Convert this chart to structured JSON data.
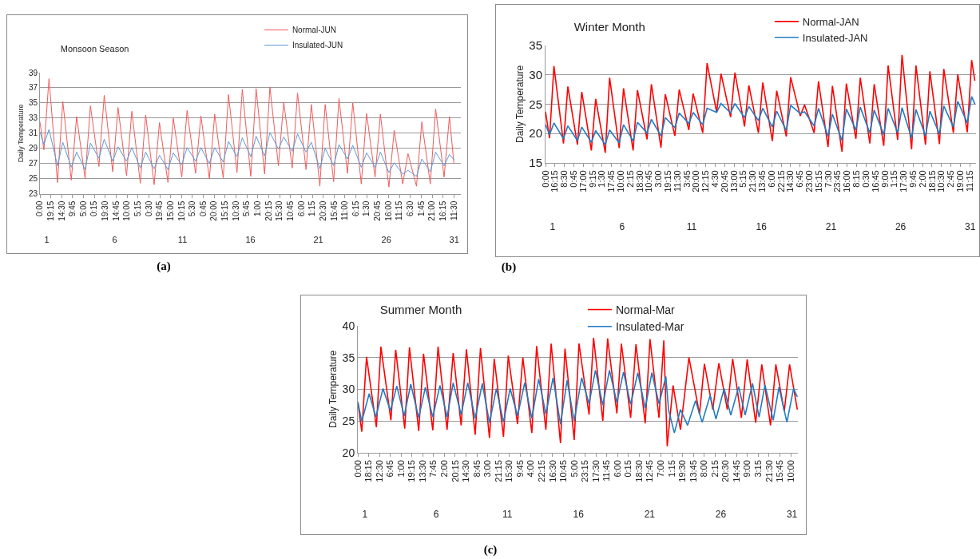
{
  "chart_data": [
    {
      "type": "line",
      "title": "Monsoon Season",
      "ylabel": "Daily Temperature",
      "annotations": [
        "(a)"
      ],
      "legend": "top",
      "grid": "y",
      "x": [
        "--01-01T00:00",
        "--01-01T07:00",
        "--01-01T16:00",
        "--01-02T07:00",
        "--01-02T16:24",
        "--01-03T07:24",
        "--01-03T16:48",
        "--01-04T07:48",
        "--01-04T17:12",
        "--01-05T08:12",
        "--01-05T17:36",
        "--01-06T08:36",
        "--01-06T18:00",
        "--01-07T09:00",
        "--01-07T18:24",
        "--01-08T09:24",
        "--01-08T18:48",
        "--01-09T09:48",
        "--01-09T19:12",
        "--01-10T10:12",
        "--01-10T19:36",
        "--01-11T10:36",
        "--01-11T20:00",
        "--01-12T11:00",
        "--01-12T20:24",
        "--01-13T11:24",
        "--01-13T20:48",
        "--01-14T11:48",
        "--01-14T21:12",
        "--01-15T12:12",
        "--01-15T21:36",
        "--01-16T12:36",
        "--01-16T22:00",
        "--01-17T13:00",
        "--01-17T22:24",
        "--01-18T13:24",
        "--01-18T22:48",
        "--01-19T13:48",
        "--01-19T23:12",
        "--01-20T14:12",
        "--01-20T23:36",
        "--01-21T14:36",
        "--01-22T00:00",
        "--01-22T15:00",
        "--01-23T00:24",
        "--01-23T15:24",
        "--01-24T00:48",
        "--01-24T15:48",
        "--01-25T01:12",
        "--01-25T16:12",
        "--01-26T01:36",
        "--01-26T16:36",
        "--01-27T02:00",
        "--01-27T17:00",
        "--01-28T02:24",
        "--01-28T17:24",
        "--01-29T02:48",
        "--01-29T17:48",
        "--01-30T03:12",
        "--01-30T18:12",
        "--01-31T03:36",
        "--01-31T11:30"
      ],
      "series": [
        {
          "name": "Normal-JUN",
          "color": "#f25a5a",
          "values": [
            32.5,
            28.8,
            38.2,
            24.5,
            35.2,
            24.8,
            33.2,
            25,
            34.6,
            26.6,
            36,
            25.9,
            34.4,
            25.4,
            33.9,
            24.4,
            33.4,
            24.2,
            32.4,
            24.5,
            33,
            25.2,
            34,
            25.7,
            33.3,
            25,
            33.5,
            25.1,
            36.1,
            25.8,
            36.8,
            25.3,
            36.9,
            25.6,
            37.1,
            26.7,
            35.1,
            26.4,
            36.3,
            26.2,
            34.8,
            24,
            34.8,
            24.6,
            35.6,
            25.7,
            35,
            24.3,
            33.6,
            25.2,
            33.5,
            23.9,
            31.4,
            24.3,
            28.3,
            24,
            32.5,
            24.3,
            34.2,
            25.2,
            33.2,
            27
          ]
        },
        {
          "name": "Insulated-JUN",
          "color": "#5b9bd5",
          "values": [
            31.2,
            29.5,
            31.5,
            26.7,
            29.8,
            26.5,
            28.5,
            26.2,
            29.7,
            27.7,
            30.2,
            27.3,
            29.2,
            27.3,
            29.1,
            26.4,
            28.5,
            26.3,
            28.1,
            26.2,
            28.4,
            26.8,
            29.1,
            27.3,
            29.1,
            27,
            29.1,
            27.2,
            29.9,
            27.9,
            30.4,
            27.9,
            30.6,
            28,
            31.1,
            28.9,
            30.5,
            28.6,
            30.9,
            28.5,
            29.8,
            26.3,
            29,
            26.7,
            29.5,
            27.6,
            29.4,
            26.5,
            28.4,
            26.5,
            28.5,
            25.8,
            27.1,
            25.6,
            26.1,
            25.3,
            27.6,
            25.9,
            28.5,
            26.7,
            28.2,
            27.5
          ]
        }
      ],
      "xlim": [
        "--01-01T00:00",
        "--01-31T23:45"
      ],
      "ylim": [
        23,
        39
      ],
      "yticks": [
        23,
        25,
        27,
        29,
        31,
        33,
        35,
        37,
        39
      ],
      "xticks": [
        {
          "value": "--01-01T00:00",
          "label": "0:00"
        },
        {
          "value": "--01-01T19:15",
          "label": "19:15"
        },
        {
          "value": "--01-02T14:30",
          "label": "14:30"
        },
        {
          "value": "--01-03T09:45",
          "label": "9:45"
        },
        {
          "value": "--01-04T05:00",
          "label": "5:00"
        },
        {
          "value": "--01-05T00:15",
          "label": "0:15"
        },
        {
          "value": "--01-05T19:30",
          "label": "19:30"
        },
        {
          "value": "--01-06T14:45",
          "label": "14:45"
        },
        {
          "value": "--01-07T10:00",
          "label": "10:00"
        },
        {
          "value": "--01-08T05:15",
          "label": "5:15"
        },
        {
          "value": "--01-09T00:30",
          "label": "0:30"
        },
        {
          "value": "--01-09T19:45",
          "label": "19:45"
        },
        {
          "value": "--01-10T15:00",
          "label": "15:00"
        },
        {
          "value": "--01-11T10:15",
          "label": "10:15"
        },
        {
          "value": "--01-12T05:30",
          "label": "5:30"
        },
        {
          "value": "--01-13T00:45",
          "label": "0:45"
        },
        {
          "value": "--01-13T20:00",
          "label": "20:00"
        },
        {
          "value": "--01-14T15:15",
          "label": "15:15"
        },
        {
          "value": "--01-15T10:30",
          "label": "10:30"
        },
        {
          "value": "--01-16T05:45",
          "label": "5:45"
        },
        {
          "value": "--01-17T01:00",
          "label": "1:00"
        },
        {
          "value": "--01-17T20:15",
          "label": "20:15"
        },
        {
          "value": "--01-18T15:30",
          "label": "15:30"
        },
        {
          "value": "--01-19T10:45",
          "label": "10:45"
        },
        {
          "value": "--01-20T06:00",
          "label": "6:00"
        },
        {
          "value": "--01-21T01:15",
          "label": "1:15"
        },
        {
          "value": "--01-21T20:30",
          "label": "20:30"
        },
        {
          "value": "--01-22T15:45",
          "label": "15:45"
        },
        {
          "value": "--01-23T11:00",
          "label": "11:00"
        },
        {
          "value": "--01-24T06:15",
          "label": "6:15"
        },
        {
          "value": "--01-25T01:30",
          "label": "1:30"
        },
        {
          "value": "--01-25T20:45",
          "label": "20:45"
        },
        {
          "value": "--01-26T16:00",
          "label": "16:00"
        },
        {
          "value": "--01-27T11:15",
          "label": "11:15"
        },
        {
          "value": "--01-28T06:30",
          "label": "6:30"
        },
        {
          "value": "--01-29T01:45",
          "label": "1:45"
        },
        {
          "value": "--01-29T21:00",
          "label": "21:00"
        },
        {
          "value": "--01-30T16:15",
          "label": "16:15"
        },
        {
          "value": "--01-31T11:30",
          "label": "11:30"
        }
      ],
      "x2lim": [
        "--01-01T00:00",
        "--01-31T23:45"
      ],
      "x2ticks": [
        {
          "value": "--01-01T12:00",
          "label": "1"
        },
        {
          "value": "--01-06T12:00",
          "label": "6"
        },
        {
          "value": "--01-11T12:00",
          "label": "11"
        },
        {
          "value": "--01-16T12:00",
          "label": "16"
        },
        {
          "value": "--01-21T12:00",
          "label": "21"
        },
        {
          "value": "--01-26T12:00",
          "label": "26"
        },
        {
          "value": "--01-31T12:00",
          "label": "31"
        }
      ]
    },
    {
      "type": "line",
      "title": "Winter Month",
      "ylabel": "Daily Temperature",
      "annotations": [
        "(b)"
      ],
      "legend": "top",
      "grid": "y",
      "x": [
        "--01-01T00:00",
        "--01-01T07:00",
        "--01-01T14:30",
        "--01-02T07:00",
        "--01-02T14:30",
        "--01-03T07:00",
        "--01-03T14:30",
        "--01-04T07:00",
        "--01-04T14:30",
        "--01-05T07:00",
        "--01-05T14:30",
        "--01-06T07:00",
        "--01-06T14:30",
        "--01-07T07:00",
        "--01-07T14:30",
        "--01-08T07:00",
        "--01-08T14:30",
        "--01-09T07:00",
        "--01-09T14:30",
        "--01-10T07:00",
        "--01-10T14:30",
        "--01-11T07:00",
        "--01-11T14:30",
        "--01-12T07:00",
        "--01-12T14:30",
        "--01-13T07:00",
        "--01-13T14:30",
        "--01-14T07:00",
        "--01-14T14:30",
        "--01-15T07:00",
        "--01-15T14:30",
        "--01-16T07:00",
        "--01-16T14:30",
        "--01-17T07:00",
        "--01-17T14:30",
        "--01-18T07:00",
        "--01-18T14:30",
        "--01-19T07:00",
        "--01-19T14:30",
        "--01-20T07:00",
        "--01-20T14:30",
        "--01-21T07:00",
        "--01-21T14:30",
        "--01-22T07:00",
        "--01-22T14:30",
        "--01-23T07:00",
        "--01-23T14:30",
        "--01-24T07:00",
        "--01-24T14:30",
        "--01-25T07:00",
        "--01-25T14:30",
        "--01-26T07:00",
        "--01-26T14:30",
        "--01-27T07:00",
        "--01-27T14:30",
        "--01-28T07:00",
        "--01-28T14:30",
        "--01-29T07:00",
        "--01-29T14:30",
        "--01-30T07:00",
        "--01-30T14:30",
        "--01-31T07:00",
        "--01-31T14:30",
        "--01-31T20:00"
      ],
      "series": [
        {
          "name": "Normal-JAN",
          "color": "#ff0000",
          "values": [
            23.7,
            19.2,
            31.5,
            18.3,
            28,
            18.1,
            27.1,
            17.1,
            25.9,
            16.7,
            29.5,
            17.5,
            27.7,
            17.1,
            27.4,
            19,
            28.4,
            17.6,
            26.7,
            19.6,
            27.5,
            20.6,
            26.8,
            20.1,
            32,
            23.6,
            30.2,
            22.8,
            30.4,
            21.2,
            28.2,
            20.1,
            28.7,
            18.7,
            27.3,
            19.5,
            29.6,
            23,
            24.9,
            20.1,
            28.9,
            17.7,
            28.1,
            16.9,
            28.5,
            19.1,
            29.5,
            18.3,
            28.4,
            17.9,
            31.6,
            18.9,
            33.4,
            17.3,
            31.6,
            18.1,
            30.6,
            18.2,
            31,
            20.1,
            30.1,
            20.2,
            32.5,
            29
          ]
        },
        {
          "name": "Insulated-JAN",
          "color": "#1f7cc4",
          "values": [
            21.5,
            19.8,
            21.8,
            19.1,
            21.3,
            18.8,
            21.1,
            18.5,
            20.5,
            18.1,
            20.6,
            18.4,
            21.5,
            18.7,
            21.9,
            20.1,
            22.4,
            19.6,
            22.7,
            21,
            23.5,
            21.7,
            23.6,
            21.5,
            24.3,
            23.6,
            25.1,
            23.5,
            25.1,
            22.7,
            24.6,
            22.2,
            24.3,
            21.1,
            23.8,
            20.5,
            24.8,
            23.4,
            23.7,
            21.3,
            24.3,
            19.5,
            23.3,
            18.8,
            24.2,
            20.6,
            24.5,
            20.1,
            24,
            19.8,
            24.3,
            20.1,
            24.4,
            19.2,
            24.1,
            19.6,
            23.8,
            19.9,
            24.7,
            21.1,
            25.5,
            21.8,
            26.3,
            25
          ]
        }
      ],
      "xlim": [
        "--01-01T00:00",
        "--01-31T22:00"
      ],
      "ylim": [
        15,
        35
      ],
      "yticks": [
        15,
        20,
        25,
        30,
        35
      ],
      "xticks": [
        {
          "value": "--01-01T00:00",
          "label": "0:00"
        },
        {
          "value": "--01-01T16:15",
          "label": "16:15"
        },
        {
          "value": "--01-02T08:30",
          "label": "8:30"
        },
        {
          "value": "--01-03T00:45",
          "label": "0:45"
        },
        {
          "value": "--01-03T17:00",
          "label": "17:00"
        },
        {
          "value": "--01-04T09:15",
          "label": "9:15"
        },
        {
          "value": "--01-05T01:30",
          "label": "1:30"
        },
        {
          "value": "--01-05T17:45",
          "label": "17:45"
        },
        {
          "value": "--01-06T10:00",
          "label": "10:00"
        },
        {
          "value": "--01-07T02:15",
          "label": "2:15"
        },
        {
          "value": "--01-07T18:30",
          "label": "18:30"
        },
        {
          "value": "--01-08T10:45",
          "label": "10:45"
        },
        {
          "value": "--01-09T03:00",
          "label": "3:00"
        },
        {
          "value": "--01-09T19:15",
          "label": "19:15"
        },
        {
          "value": "--01-10T11:30",
          "label": "11:30"
        },
        {
          "value": "--01-11T03:45",
          "label": "3:45"
        },
        {
          "value": "--01-11T20:00",
          "label": "20:00"
        },
        {
          "value": "--01-12T12:15",
          "label": "12:15"
        },
        {
          "value": "--01-13T04:30",
          "label": "4:30"
        },
        {
          "value": "--01-13T20:45",
          "label": "20:45"
        },
        {
          "value": "--01-14T13:00",
          "label": "13:00"
        },
        {
          "value": "--01-15T05:15",
          "label": "5:15"
        },
        {
          "value": "--01-15T21:30",
          "label": "21:30"
        },
        {
          "value": "--01-16T13:45",
          "label": "13:45"
        },
        {
          "value": "--01-17T06:00",
          "label": "6:00"
        },
        {
          "value": "--01-17T22:15",
          "label": "22:15"
        },
        {
          "value": "--01-18T14:30",
          "label": "14:30"
        },
        {
          "value": "--01-19T06:45",
          "label": "6:45"
        },
        {
          "value": "--01-19T23:00",
          "label": "23:00"
        },
        {
          "value": "--01-20T15:15",
          "label": "15:15"
        },
        {
          "value": "--01-21T07:30",
          "label": "7:30"
        },
        {
          "value": "--01-21T23:45",
          "label": "23:45"
        },
        {
          "value": "--01-22T16:00",
          "label": "16:00"
        },
        {
          "value": "--01-23T08:15",
          "label": "8:15"
        },
        {
          "value": "--01-24T00:30",
          "label": "0:30"
        },
        {
          "value": "--01-24T16:45",
          "label": "16:45"
        },
        {
          "value": "--01-25T09:00",
          "label": "9:00"
        },
        {
          "value": "--01-26T01:15",
          "label": "1:15"
        },
        {
          "value": "--01-26T17:30",
          "label": "17:30"
        },
        {
          "value": "--01-27T09:45",
          "label": "9:45"
        },
        {
          "value": "--01-28T02:00",
          "label": "2:00"
        },
        {
          "value": "--01-28T18:15",
          "label": "18:15"
        },
        {
          "value": "--01-29T10:30",
          "label": "10:30"
        },
        {
          "value": "--01-30T02:45",
          "label": "2:45"
        },
        {
          "value": "--01-30T19:00",
          "label": "19:00"
        },
        {
          "value": "--01-31T11:15",
          "label": "11:15"
        }
      ],
      "x2lim": [
        "--01-01T00:00",
        "--01-31T22:00"
      ],
      "x2ticks": [
        {
          "value": "--01-01T12:00",
          "label": "1"
        },
        {
          "value": "--01-06T12:00",
          "label": "6"
        },
        {
          "value": "--01-11T12:00",
          "label": "11"
        },
        {
          "value": "--01-16T12:00",
          "label": "16"
        },
        {
          "value": "--01-21T12:00",
          "label": "21"
        },
        {
          "value": "--01-26T12:00",
          "label": "26"
        },
        {
          "value": "--01-31T12:00",
          "label": "31"
        }
      ]
    },
    {
      "type": "line",
      "title": "Summer Month",
      "ylabel": "Daily Temperature",
      "annotations": [
        "(c)"
      ],
      "legend": "top",
      "grid": "y",
      "series": [
        {
          "name": "Normal-Mar",
          "color": "#ff0000",
          "x": [
            "--03-01T00:00",
            "--03-01T06:42",
            "--03-01T14:42",
            "--03-02T07:18",
            "--03-02T14:54",
            "--03-03T07:48",
            "--03-03T15:54",
            "--03-04T07:06",
            "--03-04T15:06",
            "--03-05T06:42",
            "--03-05T14:48",
            "--03-06T06:24",
            "--03-06T15:18",
            "--03-07T06:30",
            "--03-07T16:48",
            "--03-08T06:12",
            "--03-08T15:06",
            "--03-09T05:54",
            "--03-09T14:48",
            "--03-10T06:00",
            "--03-10T14:00",
            "--03-11T05:36",
            "--03-11T13:42",
            "--03-12T05:18",
            "--03-12T14:12",
            "--03-13T05:24",
            "--03-13T13:30",
            "--03-14T05:06",
            "--03-14T14:00",
            "--03-15T05:42",
            "--03-15T13:18",
            "--03-16T04:54",
            "--03-16T12:54",
            "--03-17T05:54",
            "--03-17T13:30",
            "--03-18T05:06",
            "--03-18T13:12",
            "--03-19T04:48",
            "--03-19T12:24",
            "--03-20T04:00",
            "--03-20T13:00",
            "--03-21T04:36",
            "--03-21T12:36",
            "--03-22T03:48",
            "--03-22T11:54",
            "--03-22T17:42",
            "--03-23T03:30",
            "--03-23T16:00",
            "--03-24T06:18",
            "--03-25T00:06",
            "--03-25T08:24",
            "--03-25T22:30",
            "--03-26T08:42",
            "--03-26T23:00",
            "--03-27T08:00",
            "--03-27T22:42",
            "--03-28T08:30",
            "--03-28T22:48",
            "--03-29T09:06",
            "--03-29T23:48",
            "--03-30T08:48",
            "--03-30T23:00",
            "--03-31T08:00",
            "--03-31T21:00"
          ],
          "values": [
            28,
            23.3,
            35.1,
            24,
            36.7,
            25.1,
            36.2,
            23.8,
            36.6,
            23.4,
            35.6,
            23.5,
            36.7,
            23.6,
            35.7,
            24.3,
            36.3,
            22.8,
            36.5,
            22.3,
            34.8,
            22.5,
            35.3,
            24.5,
            35,
            23.1,
            36.8,
            23.6,
            37.2,
            21.5,
            36.4,
            22,
            37.2,
            26,
            38.1,
            25,
            38,
            26.2,
            37.2,
            25.5,
            37.1,
            24.6,
            37.9,
            25.5,
            37.7,
            21,
            30.6,
            23.6,
            35,
            26.1,
            34,
            26.8,
            34.1,
            26.8,
            34.8,
            25.5,
            34.7,
            24.7,
            33.9,
            24.3,
            33.9,
            26.5,
            33.9,
            26.8
          ]
        },
        {
          "name": "Insulated-Mar",
          "color": "#1f7cc4",
          "x": [
            "--03-01T00:00",
            "--03-01T06:42",
            "--03-01T19:12",
            "--03-02T06:24",
            "--03-02T18:24",
            "--03-03T06:54",
            "--03-03T17:42",
            "--03-04T06:12",
            "--03-04T17:18",
            "--03-05T06:42",
            "--03-05T17:54",
            "--03-06T06:24",
            "--03-06T18:30",
            "--03-07T06:30",
            "--03-07T16:48",
            "--03-08T06:12",
            "--03-08T17:24",
            "--03-09T05:54",
            "--03-09T17:54",
            "--03-10T06:00",
            "--03-10T17:36",
            "--03-11T05:36",
            "--03-11T16:48",
            "--03-12T05:18",
            "--03-12T17:24",
            "--03-13T05:24",
            "--03-13T17:00",
            "--03-14T05:06",
            "--03-14T17:12",
            "--03-15T05:42",
            "--03-15T16:48",
            "--03-16T04:54",
            "--03-16T17:24",
            "--03-17T05:54",
            "--03-17T16:36",
            "--03-18T05:06",
            "--03-18T16:18",
            "--03-19T04:48",
            "--03-19T16:00",
            "--03-20T04:00",
            "--03-20T16:06",
            "--03-21T04:36",
            "--03-21T15:48",
            "--03-22T03:48",
            "--03-22T15:24",
            "--03-22T20:00",
            "--03-23T05:42",
            "--03-23T16:00",
            "--03-24T04:00",
            "--03-24T17:24",
            "--03-25T04:36",
            "--03-25T18:00",
            "--03-26T03:48",
            "--03-26T17:42",
            "--03-27T04:48",
            "--03-27T18:12",
            "--03-28T05:00",
            "--03-28T17:30",
            "--03-29T04:36",
            "--03-29T14:30",
            "--03-30T04:18",
            "--03-30T14:06",
            "--03-31T03:30",
            "--03-31T14:42",
            "--03-31T21:00"
          ],
          "values": [
            28,
            24.9,
            29.3,
            25.6,
            30.1,
            26.6,
            30.5,
            25.8,
            30.8,
            25.5,
            30.3,
            25.6,
            30.6,
            25.6,
            31,
            26,
            31,
            25.4,
            30.9,
            24.7,
            30.1,
            24.8,
            30.1,
            25.8,
            31,
            25.4,
            31.6,
            26.1,
            31.8,
            24.5,
            31.4,
            25,
            31.8,
            27.7,
            33,
            27.5,
            33,
            27.9,
            32.7,
            27.6,
            32.6,
            27,
            32.6,
            27.7,
            32,
            26.7,
            23.1,
            26.8,
            24.3,
            28.2,
            24.8,
            29,
            25.3,
            30.1,
            25.9,
            30.4,
            25.9,
            30.9,
            25.6,
            30.7,
            25.1,
            30.3,
            24.8,
            30.1,
            28.8
          ]
        }
      ],
      "xlim": [
        "--03-01T00:00",
        "--03-31T22:00"
      ],
      "ylim": [
        20,
        40
      ],
      "yticks": [
        20,
        25,
        30,
        35,
        40
      ],
      "xticks": [
        {
          "value": "--03-01T00:00",
          "label": "0:00"
        },
        {
          "value": "--03-01T18:15",
          "label": "18:15"
        },
        {
          "value": "--03-02T12:30",
          "label": "12:30"
        },
        {
          "value": "--03-03T06:45",
          "label": "6:45"
        },
        {
          "value": "--03-04T01:00",
          "label": "1:00"
        },
        {
          "value": "--03-04T19:15",
          "label": "19:15"
        },
        {
          "value": "--03-05T13:30",
          "label": "13:30"
        },
        {
          "value": "--03-06T07:45",
          "label": "7:45"
        },
        {
          "value": "--03-07T02:00",
          "label": "2:00"
        },
        {
          "value": "--03-07T20:15",
          "label": "20:15"
        },
        {
          "value": "--03-08T14:30",
          "label": "14:30"
        },
        {
          "value": "--03-09T08:45",
          "label": "8:45"
        },
        {
          "value": "--03-10T03:00",
          "label": "3:00"
        },
        {
          "value": "--03-10T21:15",
          "label": "21:15"
        },
        {
          "value": "--03-11T15:30",
          "label": "15:30"
        },
        {
          "value": "--03-12T09:45",
          "label": "9:45"
        },
        {
          "value": "--03-13T04:00",
          "label": "4:00"
        },
        {
          "value": "--03-13T22:15",
          "label": "22:15"
        },
        {
          "value": "--03-14T16:30",
          "label": "16:30"
        },
        {
          "value": "--03-15T10:45",
          "label": "10:45"
        },
        {
          "value": "--03-16T05:00",
          "label": "5:00"
        },
        {
          "value": "--03-16T23:15",
          "label": "23:15"
        },
        {
          "value": "--03-17T17:30",
          "label": "17:30"
        },
        {
          "value": "--03-18T11:45",
          "label": "11:45"
        },
        {
          "value": "--03-19T06:00",
          "label": "6:00"
        },
        {
          "value": "--03-20T00:15",
          "label": "0:15"
        },
        {
          "value": "--03-20T18:30",
          "label": "18:30"
        },
        {
          "value": "--03-21T12:45",
          "label": "12:45"
        },
        {
          "value": "--03-22T07:00",
          "label": "7:00"
        },
        {
          "value": "--03-23T01:15",
          "label": "1:15"
        },
        {
          "value": "--03-23T19:30",
          "label": "19:30"
        },
        {
          "value": "--03-24T13:45",
          "label": "13:45"
        },
        {
          "value": "--03-25T08:00",
          "label": "8:00"
        },
        {
          "value": "--03-26T02:15",
          "label": "2:15"
        },
        {
          "value": "--03-26T20:30",
          "label": "20:30"
        },
        {
          "value": "--03-27T14:45",
          "label": "14:45"
        },
        {
          "value": "--03-28T09:00",
          "label": "9:00"
        },
        {
          "value": "--03-29T03:15",
          "label": "3:15"
        },
        {
          "value": "--03-29T21:30",
          "label": "21:30"
        },
        {
          "value": "--03-30T15:45",
          "label": "15:45"
        },
        {
          "value": "--03-31T10:00",
          "label": "10:00"
        }
      ],
      "x2lim": [
        "--03-01T00:00",
        "--03-31T22:00"
      ],
      "x2ticks": [
        {
          "value": "--03-01T12:00",
          "label": "1"
        },
        {
          "value": "--03-06T12:00",
          "label": "6"
        },
        {
          "value": "--03-11T12:00",
          "label": "11"
        },
        {
          "value": "--03-16T12:00",
          "label": "16"
        },
        {
          "value": "--03-21T12:00",
          "label": "21"
        },
        {
          "value": "--03-26T12:00",
          "label": "26"
        },
        {
          "value": "--03-31T12:00",
          "label": "31"
        }
      ]
    }
  ]
}
